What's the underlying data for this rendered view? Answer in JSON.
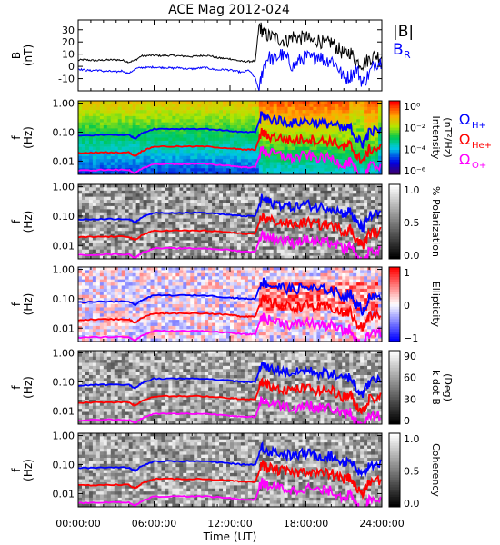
{
  "title": "ACE Mag 2012-024",
  "chart_data": {
    "type": "multi-panel spectrogram",
    "x": {
      "label": "Time (UT)",
      "range_hours": [
        0,
        24
      ],
      "tick_labels": [
        "00:00:00",
        "06:00:00",
        "12:00:00",
        "18:00:00",
        "24:00:00"
      ]
    },
    "panels": [
      {
        "id": "b-field",
        "type": "line",
        "ylabel": [
          "B",
          "(nT)"
        ],
        "ylim": [
          -20,
          38
        ],
        "yticks": [
          "30",
          "20",
          "10",
          "0",
          "-10"
        ],
        "legend": [
          {
            "label": "|B|",
            "sub": "",
            "color": "#000000"
          },
          {
            "label": "B",
            "sub": "R",
            "color": "#0000ff"
          }
        ],
        "series": [
          {
            "name": "|B|",
            "color": "#000000",
            "x": [
              0,
              0.5,
              1,
              1.5,
              2,
              2.5,
              3,
              3.5,
              4,
              4.5,
              5,
              5.5,
              6,
              6.5,
              7,
              7.5,
              8,
              8.5,
              9,
              9.5,
              10,
              10.5,
              11,
              11.5,
              12,
              12.5,
              13,
              13.5,
              14,
              14.3,
              14.6,
              15,
              15.5,
              16,
              16.5,
              17,
              17.5,
              18,
              18.5,
              19,
              19.5,
              20,
              20.5,
              21,
              21.5,
              22,
              22.5,
              23,
              23.5,
              24
            ],
            "y": [
              5,
              5.5,
              5,
              4.8,
              5.2,
              5.3,
              5.4,
              5,
              3.5,
              5,
              8.5,
              8.8,
              9,
              8.7,
              8.8,
              8.9,
              8.5,
              8.3,
              8,
              8.5,
              9,
              8.5,
              7,
              6.5,
              6.2,
              5,
              4,
              4,
              4.5,
              34,
              28,
              25,
              24,
              22,
              21,
              25,
              23,
              24,
              20,
              22,
              18,
              20,
              15,
              10,
              12,
              4,
              2,
              6,
              9,
              8
            ]
          },
          {
            "name": "B_R",
            "color": "#0000ff",
            "x": [
              0,
              0.5,
              1,
              1.5,
              2,
              2.5,
              3,
              3.5,
              4,
              4.5,
              5,
              5.5,
              6,
              6.5,
              7,
              7.5,
              8,
              8.5,
              9,
              9.5,
              10,
              10.5,
              11,
              11.5,
              12,
              12.5,
              13,
              13.5,
              14,
              14.3,
              14.6,
              15,
              15.5,
              16,
              16.5,
              17,
              17.5,
              18,
              18.5,
              19,
              19.5,
              20,
              20.5,
              21,
              21.5,
              22,
              22.5,
              23,
              23.5,
              24
            ],
            "y": [
              -2,
              -3,
              -3.5,
              -3,
              -4,
              -4,
              -4.5,
              -3.5,
              -6,
              -2,
              -1,
              -1,
              -0.5,
              -1,
              -1,
              -1.5,
              -1,
              -2,
              -2,
              -1.5,
              -1,
              -2,
              -3,
              -2.5,
              -3,
              -4,
              -5,
              -3,
              -10,
              -20,
              -2,
              8,
              5,
              10,
              6,
              0,
              5,
              8,
              6,
              10,
              4,
              6,
              0,
              -10,
              -8,
              -2,
              -14,
              -6,
              3,
              4
            ]
          }
        ]
      },
      {
        "id": "intensity",
        "type": "heatmap",
        "ylabel": [
          "f",
          "(Hz)"
        ],
        "ylim_log": [
          0.0035,
          1.2
        ],
        "yticks": [
          "1.00",
          "0.10",
          "0.01"
        ],
        "colorbar": {
          "label": [
            "Intensity",
            "(nT²/Hz)"
          ],
          "scale": "rainbow",
          "ticks": [
            "10⁰",
            "10⁻²",
            "10⁻⁴",
            "10⁻⁶"
          ]
        }
      },
      {
        "id": "polarization",
        "type": "heatmap",
        "ylabel": [
          "f",
          "(Hz)"
        ],
        "ylim_log": [
          0.0035,
          1.2
        ],
        "yticks": [
          "1.00",
          "0.10",
          "0.01"
        ],
        "colorbar": {
          "label": [
            "% Polarization"
          ],
          "scale": "gray",
          "ticks": [
            "1.0",
            "0.5",
            "0.0"
          ]
        }
      },
      {
        "id": "ellipticity",
        "type": "heatmap",
        "ylabel": [
          "f",
          "(Hz)"
        ],
        "ylim_log": [
          0.0035,
          1.2
        ],
        "yticks": [
          "1.00",
          "0.10",
          "0.01"
        ],
        "colorbar": {
          "label": [
            "Ellipticity"
          ],
          "scale": "redwhiteblue",
          "ticks": [
            "1",
            "0",
            "−1"
          ]
        }
      },
      {
        "id": "kdotb",
        "type": "heatmap",
        "ylabel": [
          "f",
          "(Hz)"
        ],
        "ylim_log": [
          0.0035,
          1.2
        ],
        "yticks": [
          "1.00",
          "0.10",
          "0.01"
        ],
        "colorbar": {
          "label": [
            "k dot B",
            "(Deg)"
          ],
          "scale": "gray",
          "ticks": [
            "90",
            "60",
            "30",
            "0"
          ]
        }
      },
      {
        "id": "coherency",
        "type": "heatmap",
        "ylabel": [
          "f",
          "(Hz)"
        ],
        "ylim_log": [
          0.0035,
          1.2
        ],
        "yticks": [
          "1.00",
          "0.10",
          "0.01"
        ],
        "colorbar": {
          "label": [
            "Coherency"
          ],
          "scale": "gray",
          "ticks": [
            "1.0",
            "0.5",
            "0.0"
          ]
        }
      }
    ],
    "gyrofrequency_legend": [
      {
        "symbol": "Ω",
        "sub": "H+",
        "color": "#0000ff"
      },
      {
        "symbol": "Ω",
        "sub": "He+",
        "color": "#ff0000"
      },
      {
        "symbol": "Ω",
        "sub": "O+",
        "color": "#ff00ff"
      }
    ],
    "gyrofrequency_overlays": [
      {
        "ion": "H+",
        "color": "#0000ff",
        "x": [
          0,
          2,
          4,
          4.5,
          5,
          6,
          8,
          10,
          12,
          13,
          14,
          14.5,
          15,
          16,
          17,
          18,
          19,
          20,
          21,
          21.5,
          22,
          22.5,
          23,
          24
        ],
        "f": [
          0.075,
          0.08,
          0.08,
          0.06,
          0.09,
          0.13,
          0.13,
          0.13,
          0.11,
          0.1,
          0.1,
          0.4,
          0.3,
          0.25,
          0.2,
          0.25,
          0.2,
          0.2,
          0.12,
          0.15,
          0.06,
          0.04,
          0.1,
          0.12
        ]
      },
      {
        "ion": "He+",
        "color": "#ff0000",
        "x": [
          0,
          2,
          4,
          4.5,
          5,
          6,
          8,
          10,
          12,
          13,
          14,
          14.5,
          15,
          16,
          17,
          18,
          19,
          20,
          21,
          21.5,
          22,
          22.5,
          23,
          24
        ],
        "f": [
          0.019,
          0.02,
          0.02,
          0.015,
          0.022,
          0.032,
          0.032,
          0.032,
          0.028,
          0.025,
          0.025,
          0.1,
          0.075,
          0.062,
          0.05,
          0.062,
          0.05,
          0.05,
          0.03,
          0.037,
          0.015,
          0.01,
          0.025,
          0.03
        ]
      },
      {
        "ion": "O+",
        "color": "#ff00ff",
        "x": [
          0,
          2,
          4,
          4.5,
          5,
          6,
          8,
          10,
          12,
          13,
          14,
          14.5,
          15,
          16,
          17,
          18,
          19,
          20,
          21,
          21.5,
          22,
          22.5,
          23,
          24
        ],
        "f": [
          0.0047,
          0.005,
          0.005,
          0.0038,
          0.0055,
          0.008,
          0.008,
          0.008,
          0.007,
          0.0062,
          0.0062,
          0.025,
          0.019,
          0.016,
          0.0125,
          0.016,
          0.0125,
          0.0125,
          0.0075,
          0.0093,
          0.0038,
          0.0025,
          0.0062,
          0.0075
        ]
      }
    ]
  }
}
